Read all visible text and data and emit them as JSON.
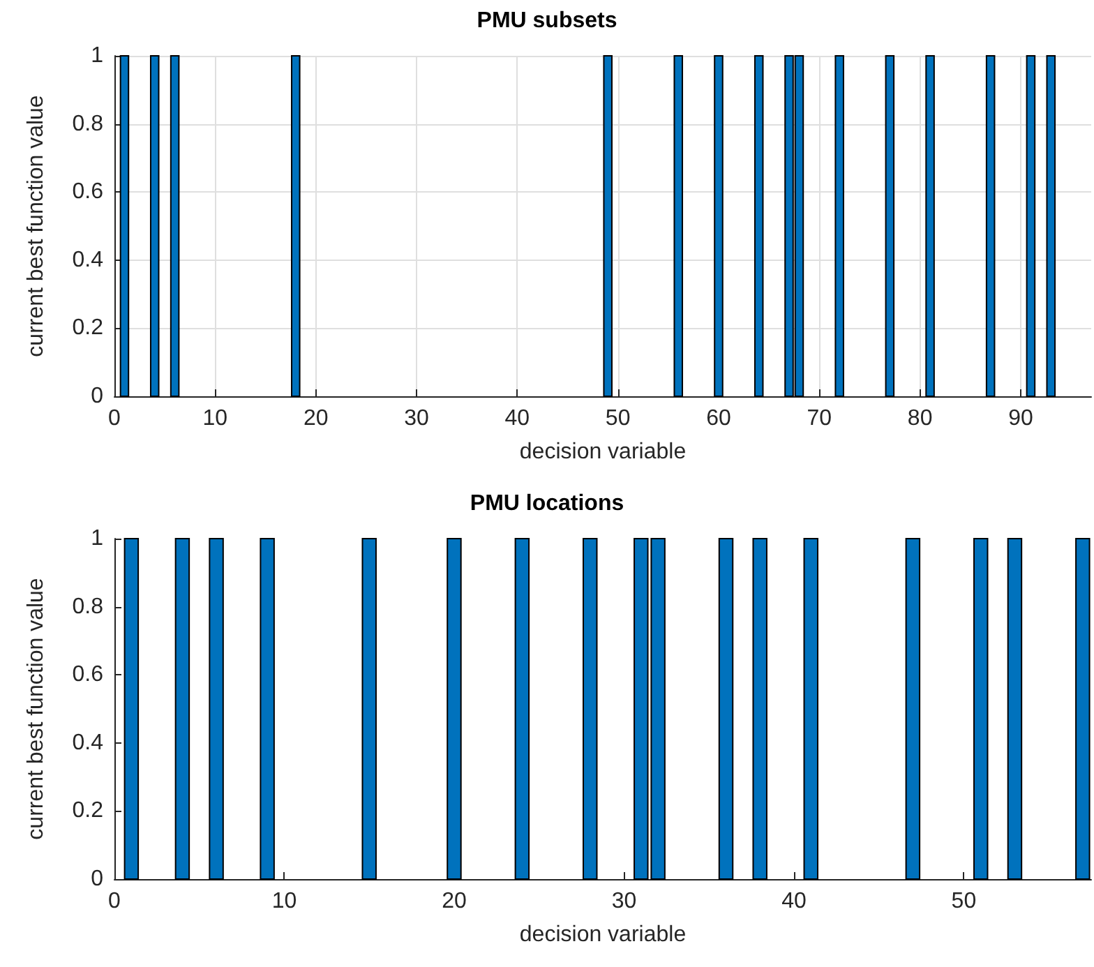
{
  "chart_data": [
    {
      "type": "bar",
      "title": "PMU subsets",
      "xlabel": "decision variable",
      "ylabel": "current best function value",
      "x": [
        1,
        4,
        6,
        18,
        49,
        56,
        60,
        64,
        67,
        68,
        72,
        77,
        81,
        87,
        91,
        93
      ],
      "series": [
        {
          "color": "#0072bd",
          "values": [
            1,
            1,
            1,
            1,
            1,
            1,
            1,
            1,
            1,
            1,
            1,
            1,
            1,
            1,
            1,
            1
          ]
        }
      ],
      "xlim": [
        0,
        97
      ],
      "xticks": [
        0,
        10,
        20,
        30,
        40,
        50,
        60,
        70,
        80,
        90
      ],
      "ylim": [
        0,
        1
      ],
      "yticks": [
        0,
        0.2,
        0.4,
        0.6,
        0.8,
        1
      ],
      "grid": true
    },
    {
      "type": "bar",
      "title": "PMU locations",
      "xlabel": "decision variable",
      "ylabel": "current best function value",
      "x": [
        1,
        4,
        6,
        9,
        15,
        20,
        24,
        28,
        31,
        32,
        36,
        38,
        41,
        47,
        51,
        53,
        57
      ],
      "series": [
        {
          "color": "#0072bd",
          "values": [
            1,
            1,
            1,
            1,
            1,
            1,
            1,
            1,
            1,
            1,
            1,
            1,
            1,
            1,
            1,
            1,
            1
          ]
        }
      ],
      "xlim": [
        0,
        57.5
      ],
      "xticks": [
        0,
        10,
        20,
        30,
        40,
        50
      ],
      "ylim": [
        0,
        1
      ],
      "yticks": [
        0,
        0.2,
        0.4,
        0.6,
        0.8,
        1
      ]
    }
  ]
}
